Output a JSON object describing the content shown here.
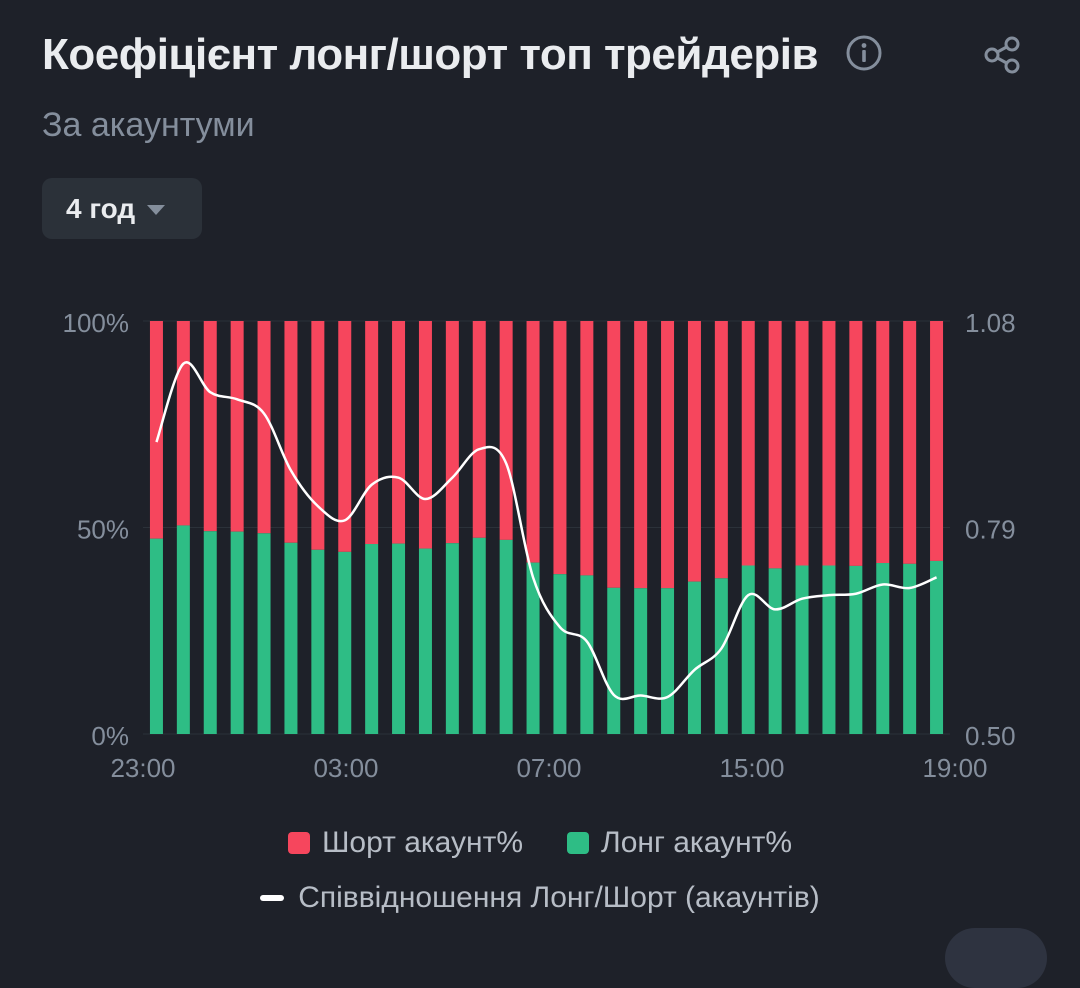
{
  "header": {
    "title": "Коефіцієнт лонг/шорт топ трейдерів",
    "subtitle": "За акаунтуми",
    "info_icon": "info-circle-icon",
    "share_icon": "share-icon"
  },
  "period_selector": {
    "label": "4 год",
    "icon": "caret-down-icon"
  },
  "colors": {
    "background": "#1e2129",
    "short": "#f6465d",
    "long": "#2ebd85",
    "ratio_line": "#ffffff",
    "axis_text": "#848e9c"
  },
  "chart_data": {
    "type": "bar",
    "stacked": true,
    "x_ticks": [
      "23:00",
      "03:00",
      "07:00",
      "15:00",
      "19:00"
    ],
    "y_left_ticks": [
      "100%",
      "50%",
      "0%"
    ],
    "y_left_range": [
      0,
      100
    ],
    "y_right_ticks": [
      "1.08",
      "0.79",
      "0.50"
    ],
    "y_right_range": [
      0.5,
      1.08
    ],
    "grid": true,
    "series": [
      {
        "name": "Шорт акаунт%",
        "values": [
          52.7,
          49.5,
          50.9,
          51.0,
          51.4,
          53.7,
          55.4,
          55.9,
          54.0,
          53.9,
          55.1,
          53.8,
          52.5,
          53.0,
          58.5,
          61.3,
          61.6,
          64.6,
          64.7,
          64.7,
          63.1,
          62.3,
          59.2,
          59.9,
          59.2,
          59.2,
          59.3,
          58.6,
          58.8,
          58.1
        ]
      },
      {
        "name": "Лонг акаунт%",
        "values": [
          47.3,
          50.5,
          49.1,
          49.0,
          48.6,
          46.3,
          44.6,
          44.1,
          46.0,
          46.1,
          44.9,
          46.2,
          47.5,
          47.0,
          41.5,
          38.7,
          38.4,
          35.4,
          35.3,
          35.3,
          36.9,
          37.7,
          40.8,
          40.1,
          40.8,
          40.8,
          40.7,
          41.4,
          41.2,
          41.9
        ]
      },
      {
        "name": "Співвідношення Лонг/Шорт (акаунтів)",
        "axis": "right",
        "values": [
          0.91,
          1.02,
          0.98,
          0.97,
          0.95,
          0.87,
          0.82,
          0.8,
          0.85,
          0.86,
          0.83,
          0.86,
          0.9,
          0.88,
          0.72,
          0.65,
          0.63,
          0.555,
          0.554,
          0.552,
          0.59,
          0.62,
          0.695,
          0.675,
          0.69,
          0.695,
          0.697,
          0.71,
          0.705,
          0.72
        ]
      }
    ]
  },
  "legend": {
    "short_label": "Шорт акаунт%",
    "long_label": "Лонг акаунт%",
    "ratio_label": "Співвідношення Лонг/Шорт (акаунтів)"
  }
}
